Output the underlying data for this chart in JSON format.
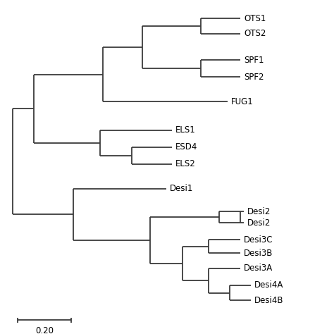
{
  "background_color": "#ffffff",
  "line_color": "#3a3a3a",
  "line_width": 1.3,
  "font_size": 8.5,
  "scale_bar_label": "0.20",
  "leaf_y": {
    "OTS1": 16.0,
    "OTS2": 15.2,
    "SPF1": 13.8,
    "SPF2": 12.9,
    "FUG1": 11.6,
    "ELS1": 10.1,
    "ESD4": 9.2,
    "ELS2": 8.3,
    "Desi1": 7.0,
    "Desi2a": 5.8,
    "Desi2b": 5.2,
    "Desi3C": 4.3,
    "Desi3B": 3.6,
    "Desi3A": 2.8,
    "Desi4A": 1.9,
    "Desi4B": 1.1
  },
  "xlim": [
    -0.015,
    1.22
  ],
  "ylim": [
    -0.5,
    16.8
  ]
}
